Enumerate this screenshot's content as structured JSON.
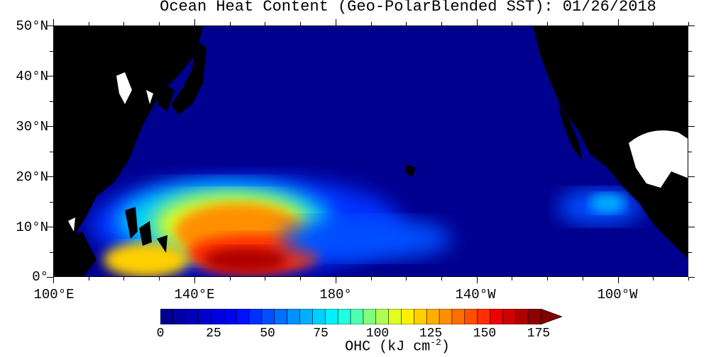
{
  "title": "Ocean Heat Content (Geo-PolarBlended SST): 01/26/2018",
  "map": {
    "lat_labels": [
      "50°N",
      "40°N",
      "30°N",
      "20°N",
      "10°N",
      "0°"
    ],
    "lon_labels": [
      "100°E",
      "140°E",
      "180°",
      "140°W",
      "100°W"
    ],
    "lat_range": [
      0,
      50
    ],
    "lon_range": [
      100,
      280
    ],
    "land_color": "#000000",
    "missing_color": "#ffffff"
  },
  "colorbar": {
    "title_main": "OHC (kJ cm",
    "title_exp": "-2",
    "title_close": ")",
    "tick_labels": [
      "0",
      "25",
      "50",
      "75",
      "100",
      "125",
      "150",
      "175"
    ],
    "min": 0,
    "max": 175,
    "step": 5,
    "extend": "max",
    "colors": [
      "#00008f",
      "#0000a3",
      "#0000b7",
      "#0000cb",
      "#0000df",
      "#0000f3",
      "#0010ff",
      "#0030ff",
      "#0050ff",
      "#0070ff",
      "#0090ff",
      "#00b0ff",
      "#00d0ff",
      "#00f0ff",
      "#20ffdf",
      "#50ffaf",
      "#80ff80",
      "#afff50",
      "#dfff20",
      "#ffef00",
      "#ffcf00",
      "#ffaf00",
      "#ff8f00",
      "#ff6f00",
      "#ff4f00",
      "#ff2f00",
      "#ef0000",
      "#cf0000",
      "#af0000",
      "#900000",
      "#800000"
    ]
  }
}
